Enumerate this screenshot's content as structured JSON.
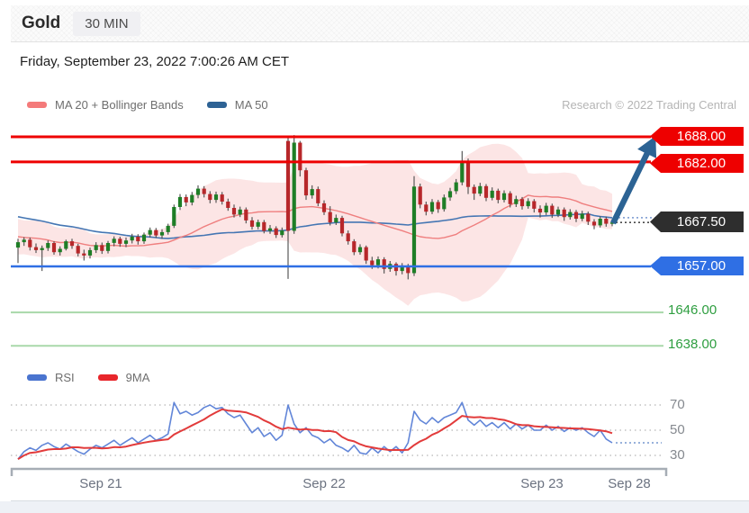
{
  "header": {
    "title": "Gold",
    "timeframe": "30 MIN"
  },
  "date_line": "Friday, September 23, 2022 7:00:26 AM CET",
  "credit": "Research © 2022 Trading Central",
  "legend_main": [
    {
      "label": "MA 20 + Bollinger Bands",
      "color": "#f47a7a"
    },
    {
      "label": "MA 50",
      "color": "#2d6294"
    }
  ],
  "legend_rsi": [
    {
      "label": "RSI",
      "color": "#4a74cf"
    },
    {
      "label": "9MA",
      "color": "#e8262b"
    }
  ],
  "chart_data": [
    {
      "type": "candlestick",
      "symbol": "Gold",
      "interval": "30 MIN",
      "x_labels": [
        "Sep 21",
        "Sep 22",
        "Sep 23",
        "Sep 28"
      ],
      "last_price": "1667.50",
      "levels": [
        {
          "label": "1688.00",
          "price": 1688.0,
          "role": "resistance",
          "line_color": "#ee0000",
          "tag_color": "#ee0000"
        },
        {
          "label": "1682.00",
          "price": 1682.0,
          "role": "resistance",
          "line_color": "#ee0000",
          "tag_color": "#ee0000"
        },
        {
          "label": "1667.50",
          "price": 1667.5,
          "role": "last",
          "line_color": "#4a4a4a",
          "tag_color": "#2e2e2e"
        },
        {
          "label": "1657.00",
          "price": 1657.0,
          "role": "support",
          "line_color": "#2f6fe4",
          "tag_color": "#2f6fe4"
        },
        {
          "label": "1646.00",
          "price": 1646.0,
          "role": "target",
          "line_color": "#a8d8aa",
          "text_color": "#2e9e40"
        },
        {
          "label": "1638.00",
          "price": 1638.0,
          "role": "target",
          "line_color": "#a8d8aa",
          "text_color": "#2e9e40"
        }
      ],
      "indicators": {
        "ma20_window": 20,
        "ma50_window": 50,
        "bollinger_k": 2,
        "ma20_color": "#ef7f7f",
        "ma50_color": "#4576b3",
        "band_fill": "rgba(246,160,160,0.28)",
        "projection_color": "#8aa6d6"
      },
      "candle_up_color": "#1e7e26",
      "candle_down_color": "#b7272a",
      "wick_color": "#4a4a4a",
      "arrow_color": "#2c6394",
      "warmup_closes": [
        1680.0,
        1677.5,
        1674.0,
        1672.5,
        1675.0,
        1678.5,
        1679.0,
        1676.0,
        1672.0,
        1670.5,
        1673.0,
        1676.5,
        1677.0,
        1674.5,
        1670.5,
        1668.5,
        1671.0,
        1674.0,
        1675.0,
        1672.0,
        1668.0,
        1666.5,
        1669.0,
        1672.0,
        1672.5,
        1669.5,
        1666.0,
        1664.5,
        1667.0,
        1669.5,
        1670.0,
        1667.0,
        1664.0,
        1662.5,
        1665.0,
        1667.5,
        1668.0,
        1665.5,
        1662.5,
        1661.0,
        1663.5,
        1666.0,
        1666.5,
        1664.0,
        1661.5,
        1660.5,
        1662.5,
        1664.5,
        1665.0,
        1662.5
      ],
      "candles": [
        [
          1661.5,
          1663.6,
          1657.8,
          1662.8
        ],
        [
          1662.8,
          1664.0,
          1661.9,
          1663.4
        ],
        [
          1663.4,
          1663.9,
          1660.8,
          1661.6
        ],
        [
          1661.6,
          1662.5,
          1660.2,
          1660.9
        ],
        [
          1660.9,
          1662.0,
          1655.9,
          1661.4
        ],
        [
          1661.4,
          1663.2,
          1660.7,
          1662.6
        ],
        [
          1662.6,
          1663.0,
          1659.8,
          1660.4
        ],
        [
          1660.4,
          1661.8,
          1659.6,
          1661.2
        ],
        [
          1661.2,
          1663.4,
          1660.8,
          1663.0
        ],
        [
          1663.0,
          1663.6,
          1661.2,
          1661.9
        ],
        [
          1661.9,
          1662.4,
          1659.4,
          1660.1
        ],
        [
          1660.1,
          1661.0,
          1658.4,
          1659.6
        ],
        [
          1659.6,
          1661.5,
          1658.9,
          1660.9
        ],
        [
          1660.9,
          1662.8,
          1660.2,
          1662.1
        ],
        [
          1662.1,
          1662.7,
          1660.0,
          1660.7
        ],
        [
          1660.7,
          1663.1,
          1660.1,
          1662.6
        ],
        [
          1662.6,
          1664.2,
          1661.8,
          1663.6
        ],
        [
          1663.6,
          1664.1,
          1661.7,
          1662.4
        ],
        [
          1662.4,
          1663.9,
          1661.6,
          1663.2
        ],
        [
          1663.2,
          1664.8,
          1662.5,
          1664.1
        ],
        [
          1664.1,
          1664.7,
          1662.2,
          1663.0
        ],
        [
          1663.0,
          1665.1,
          1662.4,
          1664.6
        ],
        [
          1664.6,
          1666.3,
          1663.9,
          1665.7
        ],
        [
          1665.7,
          1666.2,
          1663.8,
          1664.4
        ],
        [
          1664.4,
          1665.9,
          1663.6,
          1665.2
        ],
        [
          1665.2,
          1667.2,
          1664.6,
          1666.7
        ],
        [
          1666.7,
          1671.8,
          1666.2,
          1671.2
        ],
        [
          1671.2,
          1674.3,
          1670.5,
          1673.6
        ],
        [
          1673.6,
          1674.2,
          1671.4,
          1672.3
        ],
        [
          1672.3,
          1674.8,
          1671.6,
          1674.1
        ],
        [
          1674.1,
          1676.4,
          1673.3,
          1675.6
        ],
        [
          1675.6,
          1676.2,
          1673.5,
          1674.3
        ],
        [
          1674.3,
          1675.0,
          1672.1,
          1672.9
        ],
        [
          1672.9,
          1674.9,
          1672.2,
          1674.2
        ],
        [
          1674.2,
          1674.8,
          1671.8,
          1672.5
        ],
        [
          1672.5,
          1673.2,
          1670.3,
          1671.0
        ],
        [
          1671.0,
          1671.8,
          1668.7,
          1669.4
        ],
        [
          1669.4,
          1671.3,
          1668.8,
          1670.6
        ],
        [
          1670.6,
          1671.1,
          1667.3,
          1668.0
        ],
        [
          1668.0,
          1668.8,
          1665.8,
          1666.5
        ],
        [
          1666.5,
          1668.2,
          1665.9,
          1667.6
        ],
        [
          1667.6,
          1668.1,
          1664.9,
          1665.5
        ],
        [
          1665.5,
          1666.9,
          1664.8,
          1666.1
        ],
        [
          1666.1,
          1666.6,
          1663.8,
          1664.5
        ],
        [
          1664.5,
          1666.3,
          1663.9,
          1665.6
        ],
        [
          1687.0,
          1688.2,
          1654.0,
          1665.5
        ],
        [
          1665.5,
          1688.4,
          1664.8,
          1686.6
        ],
        [
          1686.6,
          1687.0,
          1678.5,
          1680.0
        ],
        [
          1680.0,
          1680.6,
          1672.9,
          1674.0
        ],
        [
          1674.0,
          1676.4,
          1673.2,
          1675.5
        ],
        [
          1675.5,
          1676.1,
          1671.4,
          1672.1
        ],
        [
          1672.1,
          1672.8,
          1669.3,
          1670.0
        ],
        [
          1670.0,
          1671.4,
          1666.8,
          1667.5
        ],
        [
          1667.5,
          1669.4,
          1666.9,
          1668.6
        ],
        [
          1668.6,
          1669.1,
          1664.2,
          1664.9
        ],
        [
          1664.9,
          1665.6,
          1662.2,
          1663.0
        ],
        [
          1663.0,
          1663.5,
          1659.7,
          1660.4
        ],
        [
          1660.4,
          1662.3,
          1659.8,
          1661.6
        ],
        [
          1661.6,
          1662.0,
          1657.6,
          1658.4
        ],
        [
          1658.4,
          1659.3,
          1656.4,
          1657.3
        ],
        [
          1657.3,
          1659.4,
          1656.5,
          1658.7
        ],
        [
          1658.7,
          1659.2,
          1655.3,
          1656.4
        ],
        [
          1656.4,
          1658.3,
          1655.7,
          1657.6
        ],
        [
          1657.6,
          1658.0,
          1654.8,
          1655.9
        ],
        [
          1655.9,
          1657.8,
          1655.1,
          1657.1
        ],
        [
          1657.1,
          1657.6,
          1653.9,
          1655.4
        ],
        [
          1655.4,
          1678.6,
          1654.7,
          1676.1
        ],
        [
          1676.1,
          1676.8,
          1670.9,
          1671.8
        ],
        [
          1671.8,
          1672.5,
          1669.2,
          1670.1
        ],
        [
          1670.1,
          1673.1,
          1669.5,
          1672.4
        ],
        [
          1672.4,
          1672.9,
          1669.8,
          1670.7
        ],
        [
          1670.7,
          1674.2,
          1670.1,
          1673.5
        ],
        [
          1673.5,
          1675.8,
          1672.7,
          1675.0
        ],
        [
          1675.0,
          1677.9,
          1674.3,
          1677.1
        ],
        [
          1677.1,
          1684.6,
          1676.4,
          1682.2
        ],
        [
          1682.2,
          1682.8,
          1674.3,
          1676.0
        ],
        [
          1676.0,
          1676.6,
          1672.9,
          1674.4
        ],
        [
          1674.4,
          1677.0,
          1673.8,
          1676.2
        ],
        [
          1676.2,
          1676.7,
          1672.6,
          1673.4
        ],
        [
          1673.4,
          1675.9,
          1672.8,
          1675.1
        ],
        [
          1675.1,
          1675.6,
          1672.1,
          1672.9
        ],
        [
          1672.9,
          1675.2,
          1672.3,
          1674.5
        ],
        [
          1674.5,
          1675.0,
          1671.1,
          1671.9
        ],
        [
          1671.9,
          1673.9,
          1671.2,
          1673.1
        ],
        [
          1673.1,
          1673.6,
          1670.6,
          1671.4
        ],
        [
          1671.4,
          1673.3,
          1670.8,
          1672.6
        ],
        [
          1672.6,
          1673.1,
          1669.9,
          1670.8
        ],
        [
          1670.8,
          1671.6,
          1668.7,
          1669.9
        ],
        [
          1669.9,
          1672.2,
          1669.3,
          1671.5
        ],
        [
          1671.5,
          1672.0,
          1668.6,
          1669.4
        ],
        [
          1669.4,
          1671.3,
          1668.8,
          1670.6
        ],
        [
          1670.6,
          1671.1,
          1667.9,
          1668.8
        ],
        [
          1668.8,
          1670.7,
          1668.2,
          1670.0
        ],
        [
          1670.0,
          1670.5,
          1667.6,
          1668.4
        ],
        [
          1668.4,
          1670.3,
          1667.8,
          1669.6
        ],
        [
          1669.6,
          1670.1,
          1666.9,
          1667.7
        ],
        [
          1667.7,
          1668.3,
          1665.9,
          1666.8
        ],
        [
          1666.8,
          1669.0,
          1666.3,
          1668.4
        ],
        [
          1668.4,
          1668.9,
          1666.5,
          1667.2
        ],
        [
          1667.2,
          1668.2,
          1666.6,
          1667.5
        ]
      ]
    },
    {
      "type": "line",
      "name": "RSI pane",
      "gridlines": [
        {
          "label": "70",
          "value": 70
        },
        {
          "label": "50",
          "value": 50
        },
        {
          "label": "30",
          "value": 30
        }
      ],
      "rsi_color": "#6286d8",
      "ma_color": "#e23b3b",
      "ma_window": 9,
      "projection_value": 40,
      "projection_color": "#8aa6d6",
      "rsi": [
        27,
        33,
        36,
        34,
        38,
        40,
        37,
        35,
        39,
        36,
        33,
        31,
        35,
        38,
        36,
        39,
        42,
        38,
        41,
        44,
        40,
        43,
        46,
        42,
        44,
        47,
        72,
        63,
        65,
        62,
        64,
        68,
        70,
        67,
        68,
        63,
        60,
        62,
        55,
        48,
        52,
        45,
        48,
        42,
        46,
        70,
        55,
        48,
        52,
        46,
        44,
        40,
        43,
        38,
        36,
        33,
        38,
        32,
        31,
        36,
        32,
        37,
        33,
        37,
        32,
        40,
        65,
        58,
        55,
        60,
        56,
        60,
        62,
        64,
        72,
        58,
        54,
        58,
        53,
        56,
        52,
        56,
        51,
        55,
        51,
        54,
        50,
        50,
        54,
        50,
        53,
        49,
        52,
        50,
        52,
        48,
        45,
        50,
        43,
        40
      ]
    }
  ]
}
